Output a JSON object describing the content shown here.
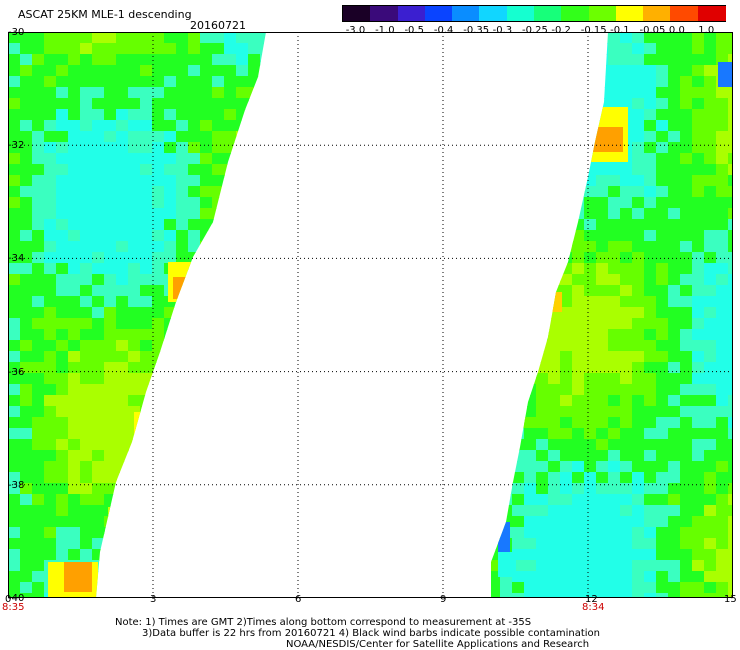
{
  "title": "ASCAT 25KM MLE-1 descending",
  "date": "20160721",
  "colorbar": {
    "labels": [
      "-3.0",
      "-1.0",
      "-0.5",
      "-0.4",
      "-0.35",
      "-0.3",
      "-0.25",
      "-0.2",
      "-0.15",
      "-0.1",
      "-0.05",
      "0.0",
      "1.0"
    ],
    "colors": [
      "#1a0026",
      "#3a0a7a",
      "#3b1fd0",
      "#0a44ff",
      "#0a8dff",
      "#11d6ff",
      "#15ffd0",
      "#17ff7a",
      "#32ff1a",
      "#6cff00",
      "#ffff00",
      "#ffb000",
      "#ff4a00",
      "#e00000"
    ]
  },
  "axes": {
    "y_ticks": [
      "-30",
      "-32",
      "-34",
      "-36",
      "-38",
      "-40"
    ],
    "x_ticks": [
      "0",
      "3",
      "6",
      "9",
      "12",
      "15"
    ],
    "x_time_labels": [
      {
        "text": "8:35",
        "at_x_tick": "0"
      },
      {
        "text": "8:34",
        "at_x_tick": "12"
      }
    ]
  },
  "notes": [
    "Note: 1) Times are GMT 2)Times along bottom correspond to measurement at -35S",
    "3)Data buffer is 22 hrs from 20160721 4) Black wind barbs indicate possible contamination",
    "NOAA/NESDIS/Center for Satellite Applications and Research"
  ],
  "colors": {
    "green": "#22ff22",
    "cyan": "#22ffe8",
    "yellow": "#ffff00",
    "orange": "#ffa000",
    "blue": "#1878ff",
    "grid": "#000000"
  }
}
